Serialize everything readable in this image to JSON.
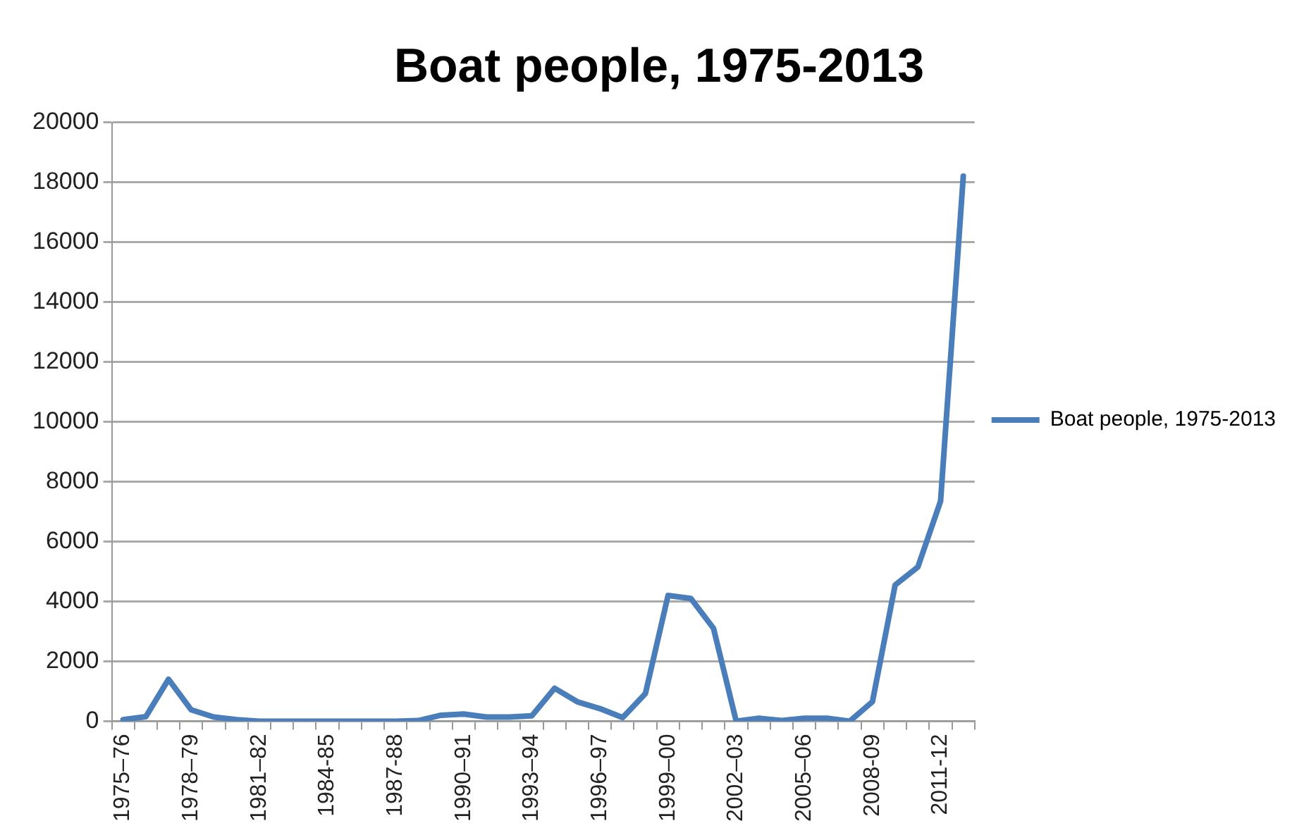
{
  "chart_data": {
    "type": "line",
    "title": "Boat people, 1975-2013",
    "categories": [
      "1975–76",
      null,
      null,
      "1978–79",
      null,
      null,
      "1981–82",
      null,
      null,
      "1984-85",
      null,
      null,
      "1987-88",
      null,
      null,
      "1990–91",
      null,
      null,
      "1993–94",
      null,
      null,
      "1996–97",
      null,
      null,
      "1999–00",
      null,
      null,
      "2002–03",
      null,
      null,
      "2005–06",
      null,
      null,
      "2008-09",
      null,
      null,
      "2011-12",
      null
    ],
    "series": [
      {
        "name": "Boat people, 1975-2013",
        "color": "#4a7ebb",
        "values": [
          50,
          150,
          1400,
          380,
          140,
          50,
          0,
          0,
          0,
          0,
          0,
          0,
          0,
          20,
          200,
          240,
          140,
          140,
          180,
          1100,
          650,
          420,
          120,
          920,
          4200,
          4100,
          3100,
          0,
          100,
          20,
          100,
          100,
          0,
          650,
          4550,
          5150,
          7350,
          18200
        ]
      }
    ],
    "ylim": [
      0,
      20000
    ],
    "yticks": [
      0,
      2000,
      4000,
      6000,
      8000,
      10000,
      12000,
      14000,
      16000,
      18000,
      20000
    ],
    "grid": "y",
    "legend": "right",
    "marker": "none",
    "line_style": "solid"
  }
}
